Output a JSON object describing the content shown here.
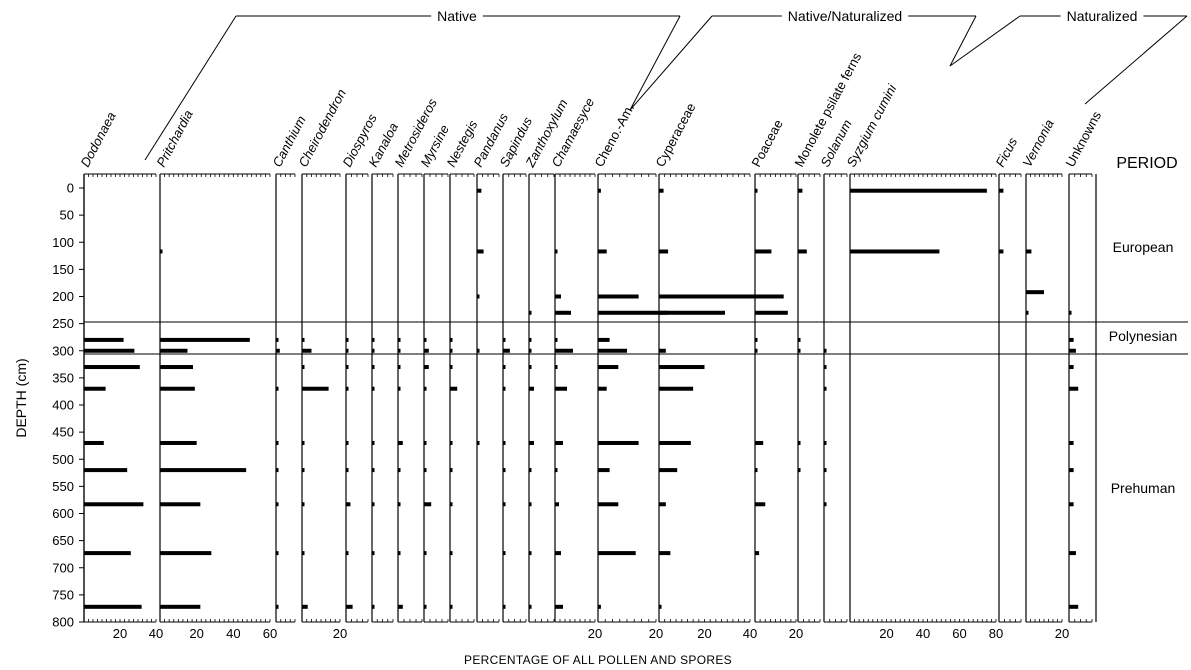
{
  "chart_data": {
    "type": "bar",
    "subtype": "pollen-diagram",
    "xlabel": "PERCENTAGE OF ALL POLLEN AND SPORES",
    "ylabel": "DEPTH (cm)",
    "ylim": [
      0,
      800
    ],
    "yticks": [
      0,
      50,
      100,
      150,
      200,
      250,
      300,
      350,
      400,
      450,
      500,
      550,
      600,
      650,
      700,
      750,
      800
    ],
    "grid": false,
    "groups": [
      {
        "name": "Native",
        "from": "Dodonaea",
        "to": "Chamaesyce"
      },
      {
        "name": "Native/Naturalized",
        "from": "Cheno.-Am.",
        "to": "Solanum"
      },
      {
        "name": "Naturalized",
        "from": "Syzgium cumini",
        "to": "Vernonia"
      }
    ],
    "periods": {
      "header": "PERIOD",
      "items": [
        {
          "name": "European",
          "top": 0,
          "bottom": 250
        },
        {
          "name": "Polynesian",
          "top": 250,
          "bottom": 310
        },
        {
          "name": "Prehuman",
          "top": 310,
          "bottom": 800
        }
      ]
    },
    "series": [
      {
        "name": "Dodonaea",
        "max": 40,
        "ticks": [
          "20",
          "40"
        ],
        "italic": true,
        "samples": [
          [
            280,
            22
          ],
          [
            300,
            28
          ],
          [
            330,
            31
          ],
          [
            370,
            12
          ],
          [
            470,
            11
          ],
          [
            520,
            24
          ],
          [
            583,
            33
          ],
          [
            673,
            26
          ],
          [
            772,
            32
          ]
        ]
      },
      {
        "name": "Pritchardia",
        "max": 60,
        "ticks": [
          "20",
          "40",
          "60"
        ],
        "italic": true,
        "samples": [
          [
            117,
            1
          ],
          [
            280,
            49
          ],
          [
            300,
            15
          ],
          [
            330,
            18
          ],
          [
            370,
            19
          ],
          [
            470,
            20
          ],
          [
            520,
            47
          ],
          [
            583,
            22
          ],
          [
            673,
            28
          ],
          [
            772,
            22
          ]
        ]
      },
      {
        "name": "Canthium",
        "max": 10,
        "ticks": [],
        "italic": true,
        "samples": [
          [
            280,
            1
          ],
          [
            300,
            2
          ],
          [
            370,
            1
          ],
          [
            470,
            1
          ],
          [
            520,
            1
          ],
          [
            583,
            1
          ],
          [
            673,
            1
          ],
          [
            772,
            1
          ]
        ]
      },
      {
        "name": "Cheirodendron",
        "max": 20,
        "ticks": [
          "20"
        ],
        "italic": true,
        "samples": [
          [
            280,
            1
          ],
          [
            300,
            5
          ],
          [
            330,
            1
          ],
          [
            370,
            14
          ],
          [
            470,
            1
          ],
          [
            520,
            1
          ],
          [
            583,
            1
          ],
          [
            673,
            1
          ],
          [
            772,
            3
          ]
        ]
      },
      {
        "name": "Diospyros",
        "max": 10,
        "ticks": [],
        "italic": true,
        "samples": [
          [
            280,
            1
          ],
          [
            300,
            1
          ],
          [
            330,
            1
          ],
          [
            370,
            1
          ],
          [
            470,
            1
          ],
          [
            520,
            1
          ],
          [
            583,
            2
          ],
          [
            673,
            1
          ],
          [
            772,
            3
          ]
        ]
      },
      {
        "name": "Kanaloa",
        "max": 10,
        "ticks": [],
        "italic": true,
        "samples": [
          [
            280,
            1
          ],
          [
            300,
            1
          ],
          [
            330,
            1
          ],
          [
            370,
            1
          ],
          [
            470,
            1
          ],
          [
            520,
            1
          ],
          [
            583,
            1
          ],
          [
            673,
            1
          ],
          [
            772,
            1
          ]
        ]
      },
      {
        "name": "Metrosideros",
        "max": 10,
        "ticks": [],
        "italic": true,
        "samples": [
          [
            280,
            1
          ],
          [
            300,
            1
          ],
          [
            330,
            1
          ],
          [
            370,
            1
          ],
          [
            470,
            2
          ],
          [
            520,
            1
          ],
          [
            583,
            1
          ],
          [
            673,
            1
          ],
          [
            772,
            2
          ]
        ]
      },
      {
        "name": "Myrsine",
        "max": 10,
        "ticks": [],
        "italic": true,
        "samples": [
          [
            280,
            1
          ],
          [
            300,
            2
          ],
          [
            330,
            2
          ],
          [
            370,
            1
          ],
          [
            470,
            1
          ],
          [
            520,
            1
          ],
          [
            583,
            3
          ],
          [
            673,
            1
          ],
          [
            772,
            1
          ]
        ]
      },
      {
        "name": "Nestegis",
        "max": 10,
        "ticks": [],
        "italic": true,
        "samples": [
          [
            280,
            1
          ],
          [
            300,
            1
          ],
          [
            330,
            1
          ],
          [
            370,
            3
          ],
          [
            470,
            1
          ],
          [
            520,
            1
          ],
          [
            583,
            1
          ],
          [
            673,
            1
          ],
          [
            772,
            1
          ]
        ]
      },
      {
        "name": "Pandanus",
        "max": 10,
        "ticks": [],
        "italic": true,
        "samples": [
          [
            5,
            2
          ],
          [
            117,
            3
          ],
          [
            200,
            1
          ],
          [
            300,
            1
          ],
          [
            470,
            1
          ]
        ]
      },
      {
        "name": "Sapindus",
        "max": 10,
        "ticks": [],
        "italic": true,
        "samples": [
          [
            280,
            1
          ],
          [
            300,
            3
          ],
          [
            330,
            1
          ],
          [
            370,
            1
          ],
          [
            470,
            1
          ],
          [
            520,
            1
          ],
          [
            583,
            1
          ],
          [
            673,
            1
          ],
          [
            772,
            1
          ]
        ]
      },
      {
        "name": "Zanthoxylum",
        "max": 10,
        "ticks": [],
        "italic": true,
        "samples": [
          [
            230,
            1
          ],
          [
            280,
            1
          ],
          [
            300,
            1
          ],
          [
            330,
            1
          ],
          [
            370,
            2
          ],
          [
            470,
            2
          ],
          [
            520,
            1
          ],
          [
            583,
            1
          ],
          [
            673,
            1
          ],
          [
            772,
            1
          ]
        ]
      },
      {
        "name": "Chamaesyce",
        "max": 20,
        "ticks": [
          "20"
        ],
        "italic": true,
        "samples": [
          [
            117,
            1
          ],
          [
            200,
            3
          ],
          [
            230,
            8
          ],
          [
            280,
            1
          ],
          [
            300,
            9
          ],
          [
            330,
            1
          ],
          [
            370,
            6
          ],
          [
            470,
            4
          ],
          [
            520,
            1
          ],
          [
            583,
            2
          ],
          [
            673,
            3
          ],
          [
            772,
            4
          ]
        ]
      },
      {
        "name": "Cheno.-Am.",
        "max": 20,
        "ticks": [
          "20"
        ],
        "italic": false,
        "samples": [
          [
            5,
            1
          ],
          [
            117,
            3
          ],
          [
            200,
            14
          ],
          [
            230,
            24
          ],
          [
            280,
            4
          ],
          [
            300,
            10
          ],
          [
            330,
            7
          ],
          [
            370,
            3
          ],
          [
            470,
            14
          ],
          [
            520,
            4
          ],
          [
            583,
            7
          ],
          [
            673,
            13
          ],
          [
            772,
            1
          ]
        ]
      },
      {
        "name": "Cyperaceae",
        "max": 40,
        "ticks": [
          "20",
          "40"
        ],
        "italic": false,
        "samples": [
          [
            5,
            2
          ],
          [
            117,
            4
          ],
          [
            200,
            44
          ],
          [
            230,
            29
          ],
          [
            300,
            3
          ],
          [
            330,
            20
          ],
          [
            370,
            15
          ],
          [
            470,
            14
          ],
          [
            520,
            8
          ],
          [
            583,
            3
          ],
          [
            673,
            5
          ],
          [
            772,
            1
          ]
        ]
      },
      {
        "name": "Poaceae",
        "max": 20,
        "ticks": [
          "20"
        ],
        "italic": false,
        "samples": [
          [
            5,
            1
          ],
          [
            117,
            8
          ],
          [
            200,
            14
          ],
          [
            230,
            16
          ],
          [
            280,
            1
          ],
          [
            300,
            1
          ],
          [
            470,
            4
          ],
          [
            520,
            1
          ],
          [
            583,
            5
          ],
          [
            673,
            2
          ]
        ]
      },
      {
        "name": "Monolete psilate ferns",
        "max": 10,
        "ticks": [],
        "italic": false,
        "samples": [
          [
            5,
            2
          ],
          [
            117,
            4
          ],
          [
            280,
            1
          ],
          [
            300,
            1
          ],
          [
            470,
            1
          ],
          [
            520,
            1
          ]
        ]
      },
      {
        "name": "Solanum",
        "max": 10,
        "ticks": [],
        "italic": true,
        "samples": [
          [
            300,
            1
          ],
          [
            330,
            1
          ],
          [
            370,
            1
          ],
          [
            470,
            1
          ],
          [
            520,
            1
          ],
          [
            583,
            1
          ]
        ]
      },
      {
        "name": "Syzgium cumini",
        "max": 80,
        "ticks": [
          "20",
          "40",
          "60",
          "80"
        ],
        "italic": true,
        "samples": [
          [
            5,
            75
          ],
          [
            117,
            49
          ]
        ]
      },
      {
        "name": "Ficus",
        "max": 10,
        "ticks": [],
        "italic": true,
        "samples": [
          [
            5,
            2
          ],
          [
            117,
            2
          ]
        ]
      },
      {
        "name": "Vernonia",
        "max": 20,
        "ticks": [
          "20"
        ],
        "italic": true,
        "samples": [
          [
            117,
            3
          ],
          [
            192,
            10
          ],
          [
            230,
            1
          ]
        ]
      },
      {
        "name": "Unknowns",
        "max": 10,
        "ticks": [],
        "italic": false,
        "samples": [
          [
            230,
            1
          ],
          [
            280,
            2
          ],
          [
            300,
            3
          ],
          [
            330,
            2
          ],
          [
            370,
            4
          ],
          [
            470,
            2
          ],
          [
            520,
            2
          ],
          [
            583,
            2
          ],
          [
            673,
            3
          ],
          [
            772,
            4
          ]
        ]
      }
    ]
  }
}
